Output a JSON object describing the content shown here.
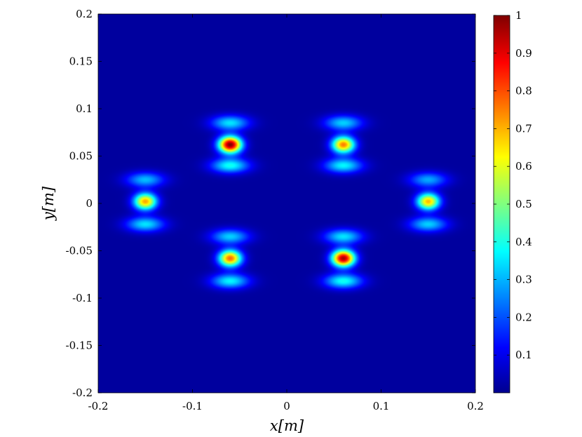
{
  "chart_data": {
    "type": "heatmap",
    "title": "",
    "xlabel": "x[m]",
    "ylabel": "y[m]",
    "xlim": [
      -0.2,
      0.2
    ],
    "ylim": [
      -0.2,
      0.2
    ],
    "x_ticks": [
      {
        "value": -0.2,
        "label": "-0.2"
      },
      {
        "value": -0.1,
        "label": "-0.1"
      },
      {
        "value": 0,
        "label": "0"
      },
      {
        "value": 0.1,
        "label": "0.1"
      },
      {
        "value": 0.2,
        "label": "0.2"
      }
    ],
    "y_ticks": [
      {
        "value": 0.2,
        "label": "0.2"
      },
      {
        "value": 0.15,
        "label": "0.15"
      },
      {
        "value": 0.1,
        "label": "0.1"
      },
      {
        "value": 0.05,
        "label": "0.05"
      },
      {
        "value": 0,
        "label": "0"
      },
      {
        "value": -0.05,
        "label": "-0.05"
      },
      {
        "value": -0.1,
        "label": "-0.1"
      },
      {
        "value": -0.15,
        "label": "-0.15"
      },
      {
        "value": -0.2,
        "label": "-0.2"
      }
    ],
    "colormap": "jet",
    "colorbar": {
      "range": [
        0,
        1
      ],
      "ticks": [
        {
          "value": 1,
          "label": "1"
        },
        {
          "value": 0.9,
          "label": "0.9"
        },
        {
          "value": 0.8,
          "label": "0.8"
        },
        {
          "value": 0.7,
          "label": "0.7"
        },
        {
          "value": 0.6,
          "label": "0.6"
        },
        {
          "value": 0.5,
          "label": "0.5"
        },
        {
          "value": 0.4,
          "label": "0.4"
        },
        {
          "value": 0.3,
          "label": "0.3"
        },
        {
          "value": 0.2,
          "label": "0.2"
        },
        {
          "value": 0.1,
          "label": "0.1"
        }
      ]
    },
    "background_level": 0.03,
    "peaks": [
      {
        "x": -0.06,
        "y": 0.062,
        "value": 0.97
      },
      {
        "x": 0.06,
        "y": 0.062,
        "value": 0.72
      },
      {
        "x": -0.15,
        "y": 0.002,
        "value": 0.68
      },
      {
        "x": 0.15,
        "y": 0.002,
        "value": 0.66
      },
      {
        "x": -0.06,
        "y": -0.058,
        "value": 0.74
      },
      {
        "x": 0.06,
        "y": -0.058,
        "value": 0.93
      }
    ],
    "side_lobes": [
      {
        "x": -0.06,
        "y": 0.085,
        "value": 0.32
      },
      {
        "x": -0.06,
        "y": 0.04,
        "value": 0.36
      },
      {
        "x": 0.06,
        "y": 0.085,
        "value": 0.3
      },
      {
        "x": 0.06,
        "y": 0.04,
        "value": 0.34
      },
      {
        "x": -0.15,
        "y": 0.025,
        "value": 0.28
      },
      {
        "x": -0.15,
        "y": -0.022,
        "value": 0.32
      },
      {
        "x": 0.15,
        "y": 0.025,
        "value": 0.26
      },
      {
        "x": 0.15,
        "y": -0.022,
        "value": 0.3
      },
      {
        "x": -0.06,
        "y": -0.035,
        "value": 0.3
      },
      {
        "x": -0.06,
        "y": -0.082,
        "value": 0.34
      },
      {
        "x": 0.06,
        "y": -0.035,
        "value": 0.32
      },
      {
        "x": 0.06,
        "y": -0.082,
        "value": 0.36
      }
    ]
  }
}
